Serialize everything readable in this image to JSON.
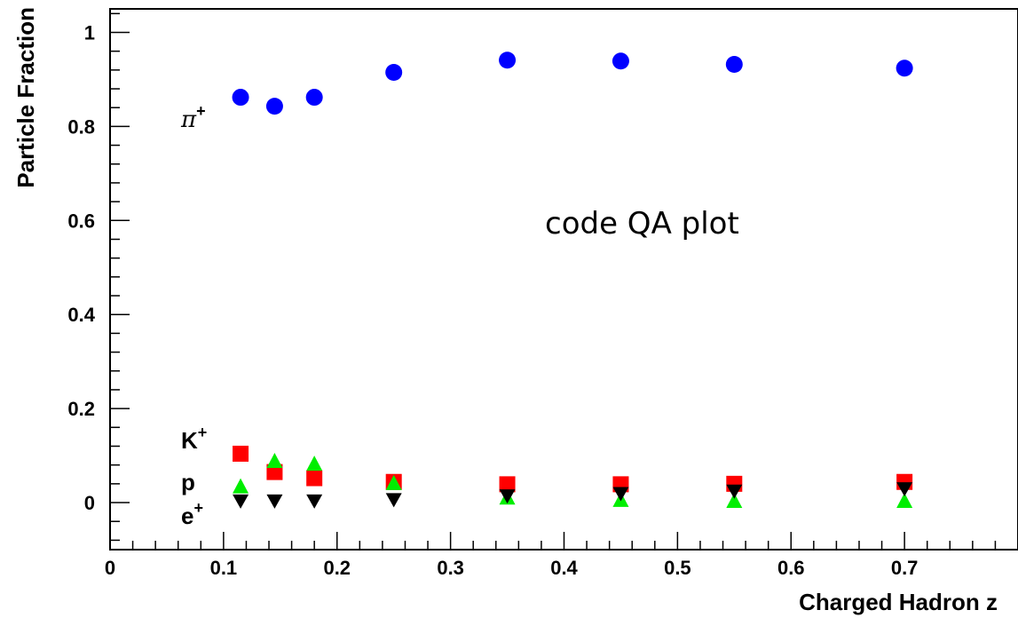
{
  "chart_data": {
    "type": "scatter",
    "title": "",
    "xlabel": "Charged Hadron z",
    "ylabel": "Particle Fraction",
    "xlim": [
      0,
      0.8
    ],
    "ylim": [
      -0.1,
      1.05
    ],
    "x_ticks": [
      "0",
      "0.1",
      "0.2",
      "0.3",
      "0.4",
      "0.5",
      "0.6",
      "0.7"
    ],
    "y_ticks": [
      "0",
      "0.2",
      "0.4",
      "0.6",
      "0.8",
      "1"
    ],
    "grid": false,
    "annotation": "code QA plot",
    "series": [
      {
        "name": "π⁺",
        "label_text": "π",
        "label_sup": "+",
        "marker": "circle",
        "color": "#0000ff",
        "x": [
          0.115,
          0.145,
          0.18,
          0.25,
          0.35,
          0.45,
          0.55,
          0.7
        ],
        "y": [
          0.862,
          0.843,
          0.862,
          0.915,
          0.941,
          0.939,
          0.932,
          0.924
        ]
      },
      {
        "name": "K⁺",
        "label_text": "K",
        "label_sup": "+",
        "marker": "square",
        "color": "#ff0000",
        "x": [
          0.115,
          0.145,
          0.18,
          0.25,
          0.35,
          0.45,
          0.55,
          0.7
        ],
        "y": [
          0.104,
          0.065,
          0.052,
          0.044,
          0.039,
          0.039,
          0.04,
          0.044
        ]
      },
      {
        "name": "p",
        "label_text": "p",
        "label_sup": "",
        "marker": "triangle-up",
        "color": "#00ee00",
        "x": [
          0.115,
          0.145,
          0.18,
          0.25,
          0.35,
          0.45,
          0.55,
          0.7
        ],
        "y": [
          0.033,
          0.087,
          0.081,
          0.04,
          0.009,
          0.004,
          0.002,
          0.002
        ]
      },
      {
        "name": "e⁺",
        "label_text": "e",
        "label_sup": "+",
        "marker": "triangle-down",
        "color": "#000000",
        "x": [
          0.115,
          0.145,
          0.18,
          0.25,
          0.35,
          0.45,
          0.55,
          0.7
        ],
        "y": [
          0.004,
          0.004,
          0.004,
          0.007,
          0.015,
          0.02,
          0.025,
          0.03
        ]
      }
    ]
  }
}
